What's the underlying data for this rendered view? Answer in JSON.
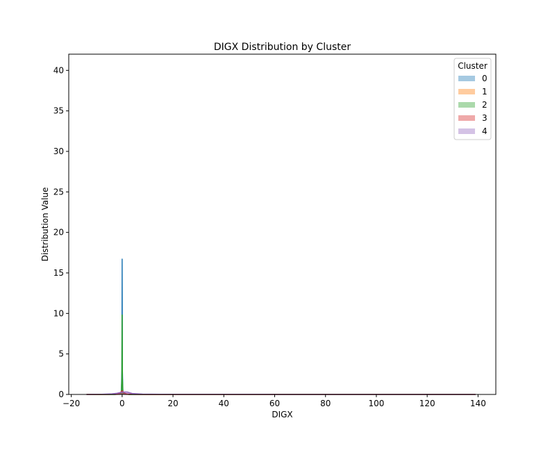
{
  "chart_data": {
    "type": "area",
    "title": "DIGX Distribution by Cluster",
    "xlabel": "DIGX",
    "ylabel": "Distribution Value",
    "xlim": [
      -21,
      147
    ],
    "ylim": [
      0,
      42
    ],
    "xticks": [
      -20,
      0,
      20,
      40,
      60,
      80,
      100,
      120,
      140
    ],
    "yticks": [
      0,
      5,
      10,
      15,
      20,
      25,
      30,
      35,
      40
    ],
    "grid": false,
    "legend": {
      "title": "Cluster",
      "placement": "top-right"
    },
    "series": [
      {
        "name": "0",
        "color": "#1f77b4",
        "x": [
          -14,
          -3,
          -1,
          -0.3,
          -0.1,
          0,
          0.1,
          0.3,
          1,
          3,
          10,
          30,
          60,
          100,
          139
        ],
        "y": [
          0,
          0,
          0.05,
          0.3,
          3.0,
          16.7,
          3.0,
          0.3,
          0.05,
          0,
          0,
          0,
          0,
          0,
          0
        ]
      },
      {
        "name": "1",
        "color": "#ff7f0e",
        "x": [
          -14,
          -3,
          -1,
          -0.3,
          0,
          0.3,
          1,
          3,
          10,
          30,
          60,
          100,
          139
        ],
        "y": [
          0,
          0,
          0.02,
          0.1,
          0.4,
          0.1,
          0.02,
          0,
          0,
          0,
          0,
          0,
          0
        ]
      },
      {
        "name": "2",
        "color": "#2ca02c",
        "x": [
          -14,
          -3,
          -1,
          -0.3,
          -0.1,
          0,
          0.1,
          0.3,
          1,
          3,
          10,
          30,
          60,
          100,
          139
        ],
        "y": [
          0,
          0,
          0.05,
          0.2,
          2.0,
          9.8,
          2.0,
          0.2,
          0.05,
          0,
          0,
          0,
          0,
          0,
          0
        ]
      },
      {
        "name": "3",
        "color": "#d62728",
        "x": [
          -14,
          -5,
          -2,
          -1,
          0,
          1,
          2,
          5,
          10,
          30,
          60,
          100,
          139
        ],
        "y": [
          0,
          0.01,
          0.05,
          0.15,
          0.45,
          0.15,
          0.05,
          0.01,
          0,
          0,
          0,
          0,
          0
        ]
      },
      {
        "name": "4",
        "color": "#9467bd",
        "x": [
          -14,
          -8,
          -4,
          -2,
          0,
          2,
          4,
          8,
          15,
          30,
          60,
          100,
          139
        ],
        "y": [
          0,
          0.02,
          0.08,
          0.15,
          0.3,
          0.3,
          0.12,
          0.04,
          0.02,
          0.01,
          0.005,
          0.003,
          0
        ]
      }
    ]
  }
}
